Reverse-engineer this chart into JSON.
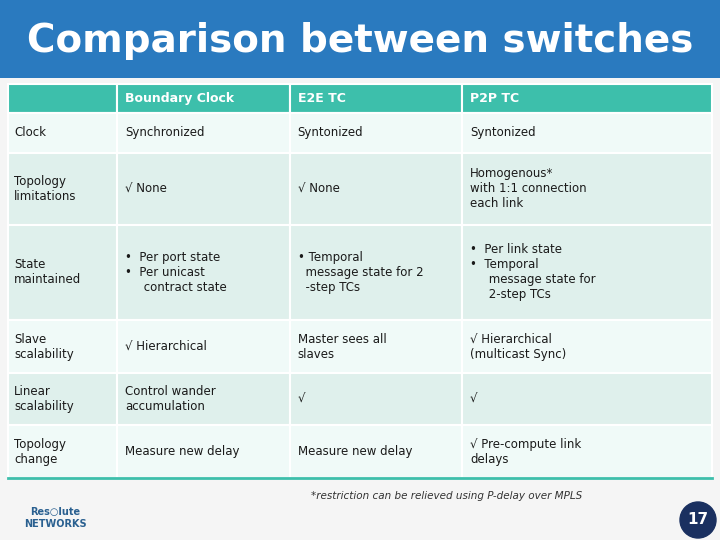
{
  "title": "Comparison between switches",
  "title_color": "#ffffff",
  "title_bg_top": "#2a7abf",
  "title_bg_bottom": "#4499d4",
  "header_bg": "#3dbfab",
  "header_text_color": "#ffffff",
  "row_bg_light": "#dff0ec",
  "row_bg_white": "#f0faf8",
  "cell_text_color": "#1a1a1a",
  "outer_bg": "#f5f5f5",
  "columns": [
    "Boundary Clock",
    "E2E TC",
    "P2P TC"
  ],
  "rows": [
    {
      "label": "Clock",
      "cells": [
        "Synchronized",
        "Syntonized",
        "Syntonized"
      ]
    },
    {
      "label": "Topology\nlimitations",
      "cells": [
        "√ None",
        "√ None",
        "Homogenous*\nwith 1:1 connection\neach link"
      ]
    },
    {
      "label": "State\nmaintained",
      "cells": [
        "•  Per port state\n•  Per unicast\n     contract state",
        "• Temporal\n  message state for 2\n  -step TCs",
        "•  Per link state\n•  Temporal\n     message state for\n     2-step TCs"
      ]
    },
    {
      "label": "Slave\nscalability",
      "cells": [
        "√ Hierarchical",
        "Master sees all\nslaves",
        "√ Hierarchical\n(multicast Sync)"
      ]
    },
    {
      "label": "Linear\nscalability",
      "cells": [
        "Control wander\naccumulation",
        "√",
        "√"
      ]
    },
    {
      "label": "Topology\nchange",
      "cells": [
        "Measure new delay",
        "Measure new delay",
        "√ Pre-compute link\ndelays"
      ]
    }
  ],
  "footnote": "*restriction can be relieved using P-delay over MPLS",
  "title_font_size": 28,
  "header_font_size": 9,
  "cell_font_size": 8.5,
  "label_font_size": 8.5
}
